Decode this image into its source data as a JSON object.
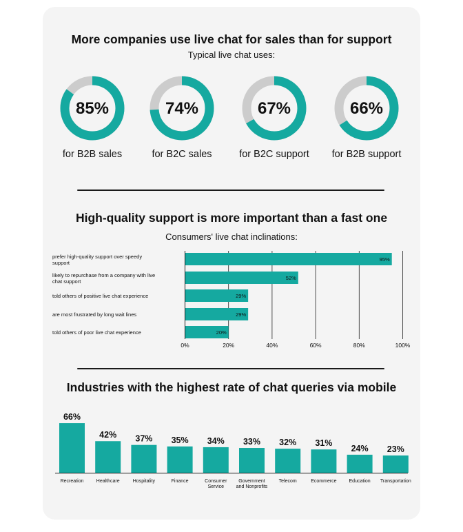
{
  "sections": {
    "uses": {
      "title": "More companies use live chat for sales than for support",
      "subtitle": "Typical live chat uses:"
    },
    "inclinations": {
      "title": "High-quality support is more important than a fast one",
      "subtitle": "Consumers' live chat inclinations:"
    },
    "industries": {
      "title": "Industries with the highest rate of chat queries via mobile"
    }
  },
  "colors": {
    "accent": "#15a9a0",
    "track": "#cccccc",
    "axis": "#1a1a1a"
  },
  "chart_data": [
    {
      "type": "pie",
      "variant": "donut",
      "items": [
        {
          "value": 85,
          "value_label": "85%",
          "label": "for B2B sales"
        },
        {
          "value": 74,
          "value_label": "74%",
          "label": "for B2C sales"
        },
        {
          "value": 67,
          "value_label": "67%",
          "label": "for B2C support"
        },
        {
          "value": 66,
          "value_label": "66%",
          "label": "for B2B support"
        }
      ]
    },
    {
      "type": "bar",
      "orientation": "horizontal",
      "categories": [
        "prefer high-quality support over speedy support",
        "likely to repurchase from a company with live chat support",
        "told others of positive live chat experience",
        "are most frustrated by long wait lines",
        "told others of poor live chat experience"
      ],
      "category_lines": [
        [
          "prefer high-quality support over speedy",
          "support"
        ],
        [
          "likely to repurchase from a company with live",
          "chat support"
        ],
        [
          "told others of positive live chat experience"
        ],
        [
          "are most frustrated by long wait lines"
        ],
        [
          "told others of poor live chat experience"
        ]
      ],
      "values": [
        95,
        52,
        29,
        29,
        20
      ],
      "value_labels": [
        "95%",
        "52%",
        "29%",
        "29%",
        "20%"
      ],
      "xlim": [
        0,
        100
      ],
      "xticks": [
        0,
        20,
        40,
        60,
        80,
        100
      ],
      "xtick_labels": [
        "0%",
        "20%",
        "40%",
        "60%",
        "80%",
        "100%"
      ],
      "grid": true
    },
    {
      "type": "bar",
      "orientation": "vertical",
      "categories": [
        "Recreation",
        "Healthcare",
        "Hospitality",
        "Finance",
        "Consumer Service",
        "Government and Nonprofits",
        "Telecom",
        "Ecommerce",
        "Education",
        "Transportation"
      ],
      "category_lines": [
        [
          "Recreation"
        ],
        [
          "Healthcare"
        ],
        [
          "Hospitality"
        ],
        [
          "Finance"
        ],
        [
          "Consumer",
          "Service"
        ],
        [
          "Government",
          "and Nonprofits"
        ],
        [
          "Telecom"
        ],
        [
          "Ecommerce"
        ],
        [
          "Education"
        ],
        [
          "Transportation"
        ]
      ],
      "values": [
        66,
        42,
        37,
        35,
        34,
        33,
        32,
        31,
        24,
        23
      ],
      "value_labels": [
        "66%",
        "42%",
        "37%",
        "35%",
        "34%",
        "33%",
        "32%",
        "31%",
        "24%",
        "23%"
      ]
    }
  ]
}
